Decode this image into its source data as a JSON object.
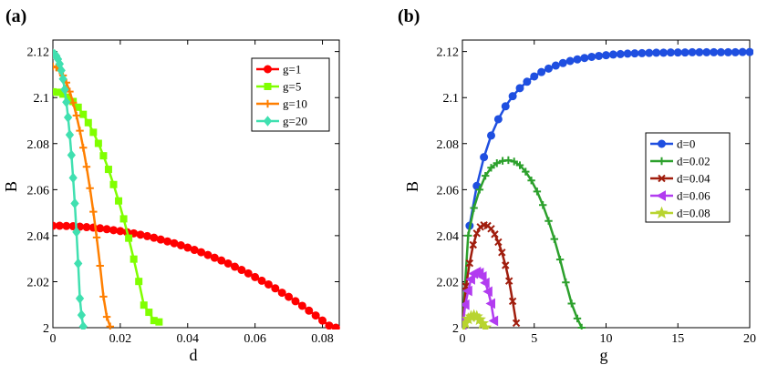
{
  "chart_data": [
    {
      "type": "line",
      "panel_label": "(a)",
      "xlabel": "d",
      "ylabel": "B",
      "xlim": [
        0,
        0.085
      ],
      "ylim": [
        2.0,
        2.125
      ],
      "xticks": [
        0,
        0.02,
        0.04,
        0.06,
        0.08
      ],
      "xtick_labels": [
        "0",
        "0.02",
        "0.04",
        "0.06",
        "0.08"
      ],
      "yticks": [
        2.0,
        2.02,
        2.04,
        2.06,
        2.08,
        2.1,
        2.12
      ],
      "ytick_labels": [
        "2",
        "2.02",
        "2.04",
        "2.06",
        "2.08",
        "2.1",
        "2.12"
      ],
      "legend_position": "top-right",
      "series": [
        {
          "name": "g=1",
          "color": "#ff0000",
          "marker": "circle",
          "x": [
            0,
            0.002,
            0.004,
            0.006,
            0.008,
            0.01,
            0.012,
            0.014,
            0.016,
            0.018,
            0.02,
            0.022,
            0.024,
            0.026,
            0.028,
            0.03,
            0.032,
            0.034,
            0.036,
            0.038,
            0.04,
            0.042,
            0.044,
            0.046,
            0.048,
            0.05,
            0.052,
            0.054,
            0.056,
            0.058,
            0.06,
            0.062,
            0.064,
            0.066,
            0.068,
            0.07,
            0.072,
            0.074,
            0.076,
            0.078,
            0.08,
            0.082,
            0.084
          ],
          "y": [
            2.0443,
            2.0443,
            2.0442,
            2.0441,
            2.0439,
            2.0437,
            2.0435,
            2.0432,
            2.0428,
            2.0424,
            2.042,
            2.0415,
            2.041,
            2.0404,
            2.0398,
            2.0391,
            2.0383,
            2.0375,
            2.0367,
            2.0358,
            2.0348,
            2.0338,
            2.0328,
            2.0316,
            2.0304,
            2.0292,
            2.0279,
            2.0265,
            2.0251,
            2.0236,
            2.022,
            2.0204,
            2.0188,
            2.0171,
            2.0152,
            2.0134,
            2.0115,
            2.0095,
            2.0074,
            2.0053,
            2.0031,
            2.0009,
            2.0
          ]
        },
        {
          "name": "g=5",
          "color": "#80ff00",
          "marker": "square",
          "x": [
            0,
            0.0015,
            0.003,
            0.0045,
            0.006,
            0.0075,
            0.009,
            0.0105,
            0.012,
            0.0135,
            0.015,
            0.0165,
            0.018,
            0.0195,
            0.021,
            0.0225,
            0.024,
            0.0255,
            0.027,
            0.0285,
            0.03,
            0.0315
          ],
          "y": [
            2.1025,
            2.1023,
            2.1015,
            2.1002,
            2.0983,
            2.0958,
            2.0927,
            2.0891,
            2.0849,
            2.0801,
            2.0747,
            2.0688,
            2.0622,
            2.0551,
            2.0473,
            2.0389,
            2.0298,
            2.0201,
            2.0098,
            2.0067,
            2.0031,
            2.0025
          ]
        },
        {
          "name": "g=10",
          "color": "#ff7f00",
          "marker": "plus",
          "x": [
            0,
            0.001,
            0.002,
            0.003,
            0.004,
            0.005,
            0.006,
            0.007,
            0.008,
            0.009,
            0.01,
            0.011,
            0.012,
            0.013,
            0.014,
            0.015,
            0.016,
            0.017
          ],
          "y": [
            2.1135,
            2.1131,
            2.1118,
            2.1096,
            2.1065,
            2.1026,
            2.0978,
            2.0922,
            2.0856,
            2.0782,
            2.0699,
            2.0606,
            2.0504,
            2.0392,
            2.0269,
            2.0135,
            2.0047,
            2.0005
          ]
        },
        {
          "name": "g=20",
          "color": "#40e0b0",
          "marker": "diamond",
          "x": [
            0,
            0.0005,
            0.001,
            0.0015,
            0.002,
            0.0025,
            0.003,
            0.0035,
            0.004,
            0.0045,
            0.005,
            0.0055,
            0.006,
            0.0065,
            0.007,
            0.0075,
            0.008,
            0.0085,
            0.009
          ],
          "y": [
            2.119,
            2.1188,
            2.1181,
            2.1167,
            2.1146,
            2.1118,
            2.1081,
            2.1035,
            2.098,
            2.0914,
            2.0838,
            2.075,
            2.0651,
            2.054,
            2.0416,
            2.0279,
            2.0127,
            2.0055,
            2.0005
          ]
        }
      ]
    },
    {
      "type": "line",
      "panel_label": "(b)",
      "xlabel": "g",
      "ylabel": "B",
      "xlim": [
        0,
        20
      ],
      "ylim": [
        2.0,
        2.125
      ],
      "xticks": [
        0,
        5,
        10,
        15,
        20
      ],
      "xtick_labels": [
        "0",
        "5",
        "10",
        "15",
        "20"
      ],
      "yticks": [
        2.0,
        2.02,
        2.04,
        2.06,
        2.08,
        2.1,
        2.12
      ],
      "ytick_labels": [
        "2",
        "2.02",
        "2.04",
        "2.06",
        "2.08",
        "2.1",
        "2.12"
      ],
      "legend_position": "center-right",
      "series": [
        {
          "name": "d=0",
          "color": "#1f4fe0",
          "marker": "circle",
          "x": [
            0.5,
            1,
            1.5,
            2,
            2.5,
            3,
            3.5,
            4,
            4.5,
            5,
            5.5,
            6,
            6.5,
            7,
            7.5,
            8,
            8.5,
            9,
            9.5,
            10,
            10.5,
            11,
            11.5,
            12,
            12.5,
            13,
            13.5,
            14,
            14.5,
            15,
            15.5,
            16,
            16.5,
            17,
            17.5,
            18,
            18.5,
            19,
            19.5,
            20
          ],
          "y": [
            2.0443,
            2.0616,
            2.0741,
            2.0835,
            2.0906,
            2.0962,
            2.1006,
            2.1041,
            2.1069,
            2.1092,
            2.1111,
            2.1126,
            2.1139,
            2.115,
            2.1159,
            2.1166,
            2.1172,
            2.1177,
            2.1181,
            2.1184,
            2.1187,
            2.1189,
            2.1191,
            2.1192,
            2.1193,
            2.1194,
            2.1195,
            2.1195,
            2.1196,
            2.1196,
            2.1196,
            2.1197,
            2.1197,
            2.1197,
            2.1197,
            2.1197,
            2.1197,
            2.1197,
            2.1198,
            2.1198
          ]
        },
        {
          "name": "d=0.02",
          "color": "#2ca02c",
          "marker": "plus",
          "x": [
            0,
            0.4,
            0.8,
            1.2,
            1.6,
            2.0,
            2.4,
            2.8,
            3.2,
            3.6,
            4.0,
            4.4,
            4.8,
            5.2,
            5.6,
            6.0,
            6.4,
            6.8,
            7.2,
            7.6,
            8.0,
            8.3
          ],
          "y": [
            2.0,
            2.04,
            2.052,
            2.06,
            2.066,
            2.0695,
            2.0715,
            2.0725,
            2.0728,
            2.0722,
            2.0706,
            2.0678,
            2.064,
            2.0592,
            2.0533,
            2.0464,
            2.0385,
            2.0296,
            2.0197,
            2.0105,
            2.004,
            2.0
          ]
        },
        {
          "name": "d=0.04",
          "color": "#a01d0d",
          "marker": "x",
          "x": [
            0,
            0.25,
            0.5,
            0.75,
            1.0,
            1.25,
            1.5,
            1.75,
            2.0,
            2.25,
            2.5,
            2.75,
            3.0,
            3.25,
            3.5,
            3.75
          ],
          "y": [
            2.0,
            2.018,
            2.028,
            2.036,
            2.041,
            2.0438,
            2.0446,
            2.0443,
            2.043,
            2.0406,
            2.0372,
            2.0327,
            2.0271,
            2.0203,
            2.0115,
            2.002
          ]
        },
        {
          "name": "d=0.06",
          "color": "#b23cf0",
          "marker": "triangle-left",
          "x": [
            0,
            0.2,
            0.4,
            0.6,
            0.8,
            1.0,
            1.2,
            1.4,
            1.6,
            1.8,
            2.0,
            2.2
          ],
          "y": [
            2.0,
            2.01,
            2.016,
            2.021,
            2.0235,
            2.0242,
            2.0238,
            2.0222,
            2.0195,
            2.0157,
            2.0105,
            2.003
          ]
        },
        {
          "name": "d=0.08",
          "color": "#b8d430",
          "marker": "star",
          "x": [
            0,
            0.2,
            0.4,
            0.6,
            0.8,
            1.0,
            1.2,
            1.4,
            1.6
          ],
          "y": [
            2.0,
            2.002,
            2.0038,
            2.0048,
            2.0052,
            2.0048,
            2.0035,
            2.0018,
            2.0
          ]
        }
      ]
    }
  ]
}
